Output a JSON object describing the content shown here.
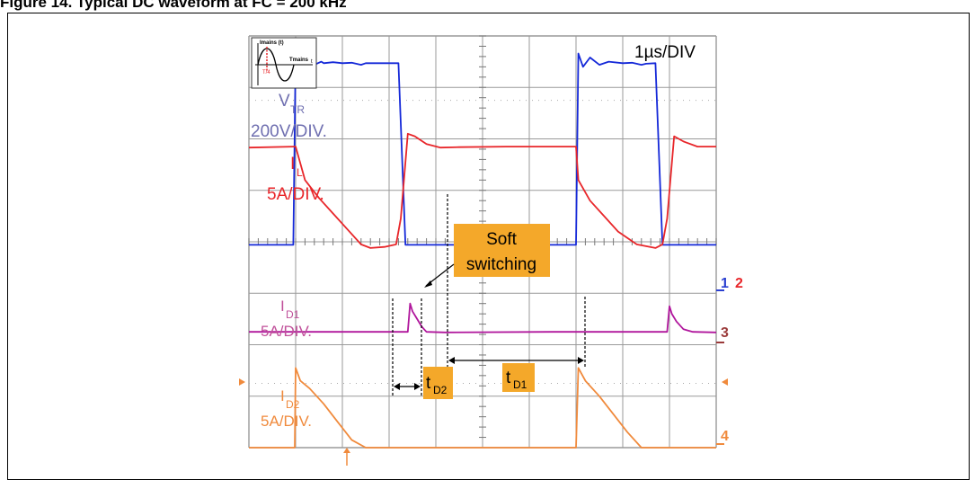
{
  "figure": {
    "title": "Figure 14. Typical DC   waveform at FC = 200 kHz"
  },
  "inset": {
    "ylabel": "Imains (t)",
    "xlabel": "Tmains",
    "axis_t": "t",
    "marker": "T/4"
  },
  "timebase": "1µs/DIV",
  "callout": {
    "line1": "Soft",
    "line2": "switching"
  },
  "channels": {
    "vtr": {
      "name": "V",
      "sub": "TR",
      "scale": "200V/DIV.",
      "color": "#6f6fb0"
    },
    "il": {
      "name": "I",
      "sub": "L",
      "scale": "5A/DIV.",
      "color": "#e8262a"
    },
    "id1": {
      "name": "I",
      "sub": "D1",
      "scale": "5A/DIV.",
      "color": "#c0509a"
    },
    "id2": {
      "name": "I",
      "sub": "D2",
      "scale": "5A/DIV.",
      "color": "#f08a3c"
    }
  },
  "markers": {
    "ch1": "1",
    "ch2": "2",
    "ch3": "3",
    "ch4": "4",
    "ch1_color": "#2a3fd0",
    "ch2_color": "#e8262a",
    "ch3_color": "#9a3a3a",
    "ch4_color": "#f08a3c"
  },
  "time_labels": {
    "td2": {
      "name": "t",
      "sub": "D2"
    },
    "td1": {
      "name": "t",
      "sub": "D1"
    },
    "box_color": "#f4a82a"
  },
  "chart_data": {
    "type": "line",
    "title": "",
    "xlabel": "",
    "ylabel": "",
    "x_unit": "µs",
    "xlim": [
      0,
      10
    ],
    "grid": true,
    "grid_divisions": {
      "x": 10,
      "y": 8
    },
    "series": [
      {
        "name": "VTR",
        "color": "#1428d8",
        "x": [
          0,
          0.95,
          1.0,
          1.1,
          1.25,
          1.4,
          1.55,
          1.6,
          1.8,
          2.0,
          2.2,
          2.4,
          2.5,
          3.2,
          3.35,
          3.5,
          6.8,
          7.0,
          7.05,
          7.15,
          7.3,
          7.5,
          7.7,
          8.0,
          8.2,
          8.4,
          8.5,
          8.7,
          8.85,
          9.0,
          10
        ],
        "y": [
          -0.06,
          -0.06,
          3.66,
          3.4,
          3.58,
          3.44,
          3.5,
          3.47,
          3.49,
          3.47,
          3.48,
          3.44,
          3.47,
          3.47,
          -0.06,
          -0.06,
          -0.06,
          -0.06,
          3.66,
          3.4,
          3.58,
          3.44,
          3.5,
          3.47,
          3.48,
          3.44,
          3.46,
          3.47,
          -0.06,
          -0.06,
          -0.06
        ]
      },
      {
        "name": "IL",
        "color": "#e8262a",
        "x": [
          0,
          0.95,
          1.0,
          1.2,
          1.5,
          1.8,
          2.1,
          2.4,
          2.6,
          2.9,
          3.15,
          3.25,
          3.4,
          3.55,
          3.8,
          4.1,
          4.5,
          5.5,
          7.0,
          7.05,
          7.3,
          7.6,
          7.9,
          8.3,
          8.7,
          8.85,
          8.95,
          9.1,
          9.3,
          9.6,
          10
        ],
        "y": [
          1.83,
          1.85,
          1.85,
          1.2,
          0.85,
          0.55,
          0.25,
          -0.05,
          -0.12,
          -0.1,
          -0.05,
          0.45,
          2.1,
          2.05,
          1.9,
          1.83,
          1.84,
          1.85,
          1.85,
          1.2,
          0.8,
          0.5,
          0.2,
          -0.05,
          -0.12,
          -0.05,
          0.45,
          2.05,
          1.95,
          1.85,
          1.85
        ]
      },
      {
        "name": "ID1",
        "color": "#b0169c",
        "x": [
          0,
          3.4,
          3.45,
          3.5,
          3.6,
          3.7,
          3.8,
          4.2,
          6.5,
          8.95,
          9.0,
          9.05,
          9.15,
          9.3,
          9.5,
          10
        ],
        "y": [
          -1.75,
          -1.75,
          -1.2,
          -1.35,
          -1.5,
          -1.65,
          -1.75,
          -1.76,
          -1.75,
          -1.75,
          -1.25,
          -1.4,
          -1.55,
          -1.7,
          -1.75,
          -1.76
        ]
      },
      {
        "name": "ID2",
        "color": "#f08a3c",
        "x": [
          0,
          0.98,
          1.0,
          1.1,
          1.3,
          1.6,
          1.9,
          2.2,
          2.5,
          3.0,
          6.8,
          7.0,
          7.05,
          7.2,
          7.5,
          7.8,
          8.1,
          8.4,
          8.6,
          10
        ],
        "y": [
          -4.0,
          -4.0,
          -2.45,
          -2.7,
          -2.85,
          -3.15,
          -3.5,
          -3.85,
          -4.0,
          -4.0,
          -4.0,
          -4.0,
          -2.45,
          -2.7,
          -3.0,
          -3.35,
          -3.7,
          -4.0,
          -4.0,
          -4.0
        ]
      }
    ]
  }
}
